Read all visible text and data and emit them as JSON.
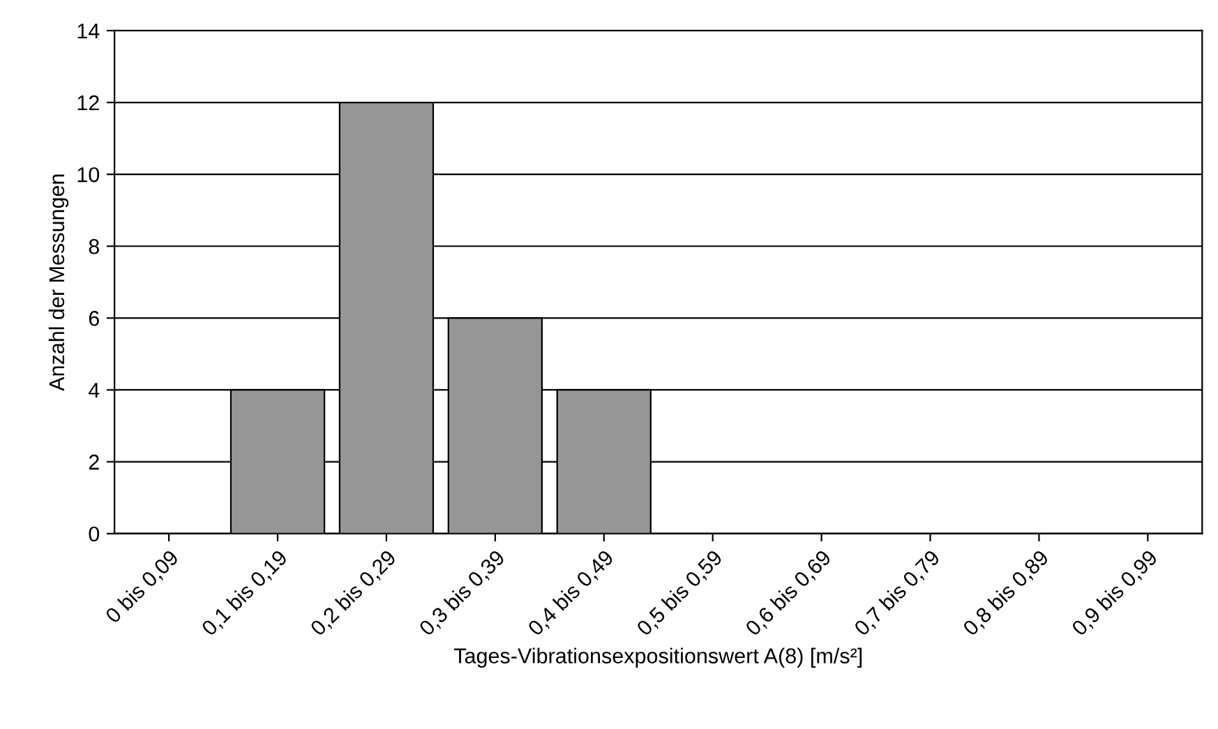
{
  "chart_data": {
    "type": "bar",
    "xlabel": "Tages-Vibrationsexpositionswert A(8) [m/s²]",
    "ylabel": "Anzahl der Messungen",
    "categories": [
      "0 bis 0,09",
      "0,1 bis 0,19",
      "0,2 bis 0,29",
      "0,3 bis 0,39",
      "0,4 bis 0,49",
      "0,5 bis 0,59",
      "0,6 bis 0,69",
      "0,7 bis 0,79",
      "0,8 bis 0,89",
      "0,9 bis 0,99"
    ],
    "values": [
      0,
      4,
      12,
      6,
      4,
      0,
      0,
      0,
      0,
      0
    ],
    "color": "#969696",
    "ylim": [
      0,
      14
    ],
    "yticks": [
      0,
      2,
      4,
      6,
      8,
      10,
      12,
      14
    ],
    "grid": "y"
  }
}
